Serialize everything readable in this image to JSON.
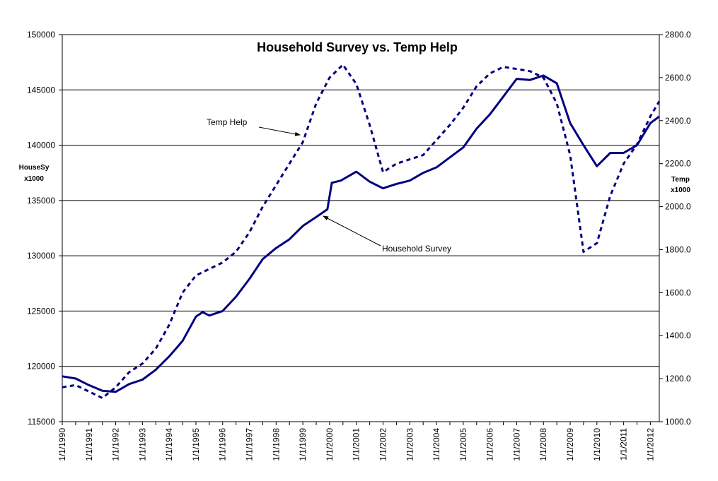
{
  "chart_data": {
    "type": "line",
    "title": "Household Survey vs. Temp Help",
    "y_left_label": [
      "HouseSy",
      "x1000"
    ],
    "y_right_label": [
      "Temp",
      "x1000"
    ],
    "y_left_range": [
      115000,
      150000
    ],
    "y_left_ticks": [
      "115000",
      "120000",
      "125000",
      "130000",
      "135000",
      "140000",
      "145000",
      "150000"
    ],
    "y_right_range": [
      1000,
      2800
    ],
    "y_right_ticks": [
      "1000.0",
      "1200.0",
      "1400.0",
      "1600.0",
      "1800.0",
      "2000.0",
      "2200.0",
      "2400.0",
      "2600.0",
      "2800.0"
    ],
    "x_ticks": [
      "1/1/1990",
      "1/1/1991",
      "1/1/1992",
      "1/1/1993",
      "1/1/1994",
      "1/1/1995",
      "1/1/1996",
      "1/1/1997",
      "1/1/1998",
      "1/1/1999",
      "1/1/2000",
      "1/1/2001",
      "1/1/2002",
      "1/1/2003",
      "1/1/2004",
      "1/1/2005",
      "1/1/2006",
      "1/1/2007",
      "1/1/2008",
      "1/1/2009",
      "1/1/2010",
      "1/1/2011",
      "1/1/2012"
    ],
    "x_range": [
      "1990-01-01",
      "2012-05-01"
    ],
    "gridlines": "horizontal",
    "series": [
      {
        "name": "Household Survey",
        "axis": "left",
        "style": "solid",
        "color": "#000080",
        "points": [
          [
            "1990-01",
            119100
          ],
          [
            "1990-07",
            118900
          ],
          [
            "1991-01",
            118300
          ],
          [
            "1991-07",
            117800
          ],
          [
            "1992-01",
            117700
          ],
          [
            "1992-07",
            118400
          ],
          [
            "1993-01",
            118800
          ],
          [
            "1993-07",
            119700
          ],
          [
            "1994-01",
            120900
          ],
          [
            "1994-07",
            122300
          ],
          [
            "1995-01",
            124500
          ],
          [
            "1995-04",
            124900
          ],
          [
            "1995-07",
            124600
          ],
          [
            "1996-01",
            125000
          ],
          [
            "1996-07",
            126300
          ],
          [
            "1997-01",
            127900
          ],
          [
            "1997-07",
            129700
          ],
          [
            "1998-01",
            130700
          ],
          [
            "1998-07",
            131500
          ],
          [
            "1999-01",
            132700
          ],
          [
            "1999-07",
            133500
          ],
          [
            "1999-12",
            134200
          ],
          [
            "2000-02",
            136600
          ],
          [
            "2000-06",
            136800
          ],
          [
            "2001-01",
            137600
          ],
          [
            "2001-07",
            136700
          ],
          [
            "2002-01",
            136100
          ],
          [
            "2002-07",
            136500
          ],
          [
            "2003-01",
            136800
          ],
          [
            "2003-07",
            137500
          ],
          [
            "2004-01",
            138000
          ],
          [
            "2004-07",
            138900
          ],
          [
            "2005-01",
            139800
          ],
          [
            "2005-07",
            141500
          ],
          [
            "2006-01",
            142800
          ],
          [
            "2006-07",
            144400
          ],
          [
            "2007-01",
            146000
          ],
          [
            "2007-07",
            145900
          ],
          [
            "2008-01",
            146300
          ],
          [
            "2008-07",
            145600
          ],
          [
            "2009-01",
            142000
          ],
          [
            "2009-07",
            140000
          ],
          [
            "2010-01",
            138100
          ],
          [
            "2010-07",
            139300
          ],
          [
            "2011-01",
            139300
          ],
          [
            "2011-07",
            140000
          ],
          [
            "2012-01",
            142000
          ],
          [
            "2012-05",
            142600
          ]
        ]
      },
      {
        "name": "Temp Help",
        "axis": "right",
        "style": "dashed",
        "color": "#000080",
        "points": [
          [
            "1990-01",
            1160
          ],
          [
            "1990-07",
            1170
          ],
          [
            "1991-01",
            1140
          ],
          [
            "1991-07",
            1110
          ],
          [
            "1992-01",
            1160
          ],
          [
            "1992-07",
            1230
          ],
          [
            "1993-01",
            1270
          ],
          [
            "1993-07",
            1340
          ],
          [
            "1994-01",
            1450
          ],
          [
            "1994-07",
            1600
          ],
          [
            "1995-01",
            1680
          ],
          [
            "1995-07",
            1710
          ],
          [
            "1996-01",
            1740
          ],
          [
            "1996-07",
            1790
          ],
          [
            "1997-01",
            1880
          ],
          [
            "1997-07",
            2000
          ],
          [
            "1998-01",
            2100
          ],
          [
            "1998-07",
            2200
          ],
          [
            "1999-01",
            2300
          ],
          [
            "1999-07",
            2480
          ],
          [
            "2000-01",
            2600
          ],
          [
            "2000-07",
            2660
          ],
          [
            "2001-01",
            2570
          ],
          [
            "2001-07",
            2380
          ],
          [
            "2002-01",
            2160
          ],
          [
            "2002-07",
            2200
          ],
          [
            "2003-01",
            2220
          ],
          [
            "2003-07",
            2240
          ],
          [
            "2004-01",
            2310
          ],
          [
            "2004-07",
            2380
          ],
          [
            "2005-01",
            2460
          ],
          [
            "2005-07",
            2560
          ],
          [
            "2006-01",
            2620
          ],
          [
            "2006-07",
            2650
          ],
          [
            "2007-01",
            2640
          ],
          [
            "2007-07",
            2630
          ],
          [
            "2008-01",
            2600
          ],
          [
            "2008-07",
            2480
          ],
          [
            "2009-01",
            2240
          ],
          [
            "2009-07",
            1790
          ],
          [
            "2010-01",
            1830
          ],
          [
            "2010-07",
            2050
          ],
          [
            "2011-01",
            2200
          ],
          [
            "2011-07",
            2290
          ],
          [
            "2012-01",
            2420
          ],
          [
            "2012-05",
            2490
          ]
        ]
      }
    ],
    "annotations": [
      {
        "text": "Temp Help",
        "target_series": "Temp Help"
      },
      {
        "text": "Household Survey",
        "target_series": "Household Survey"
      }
    ]
  }
}
